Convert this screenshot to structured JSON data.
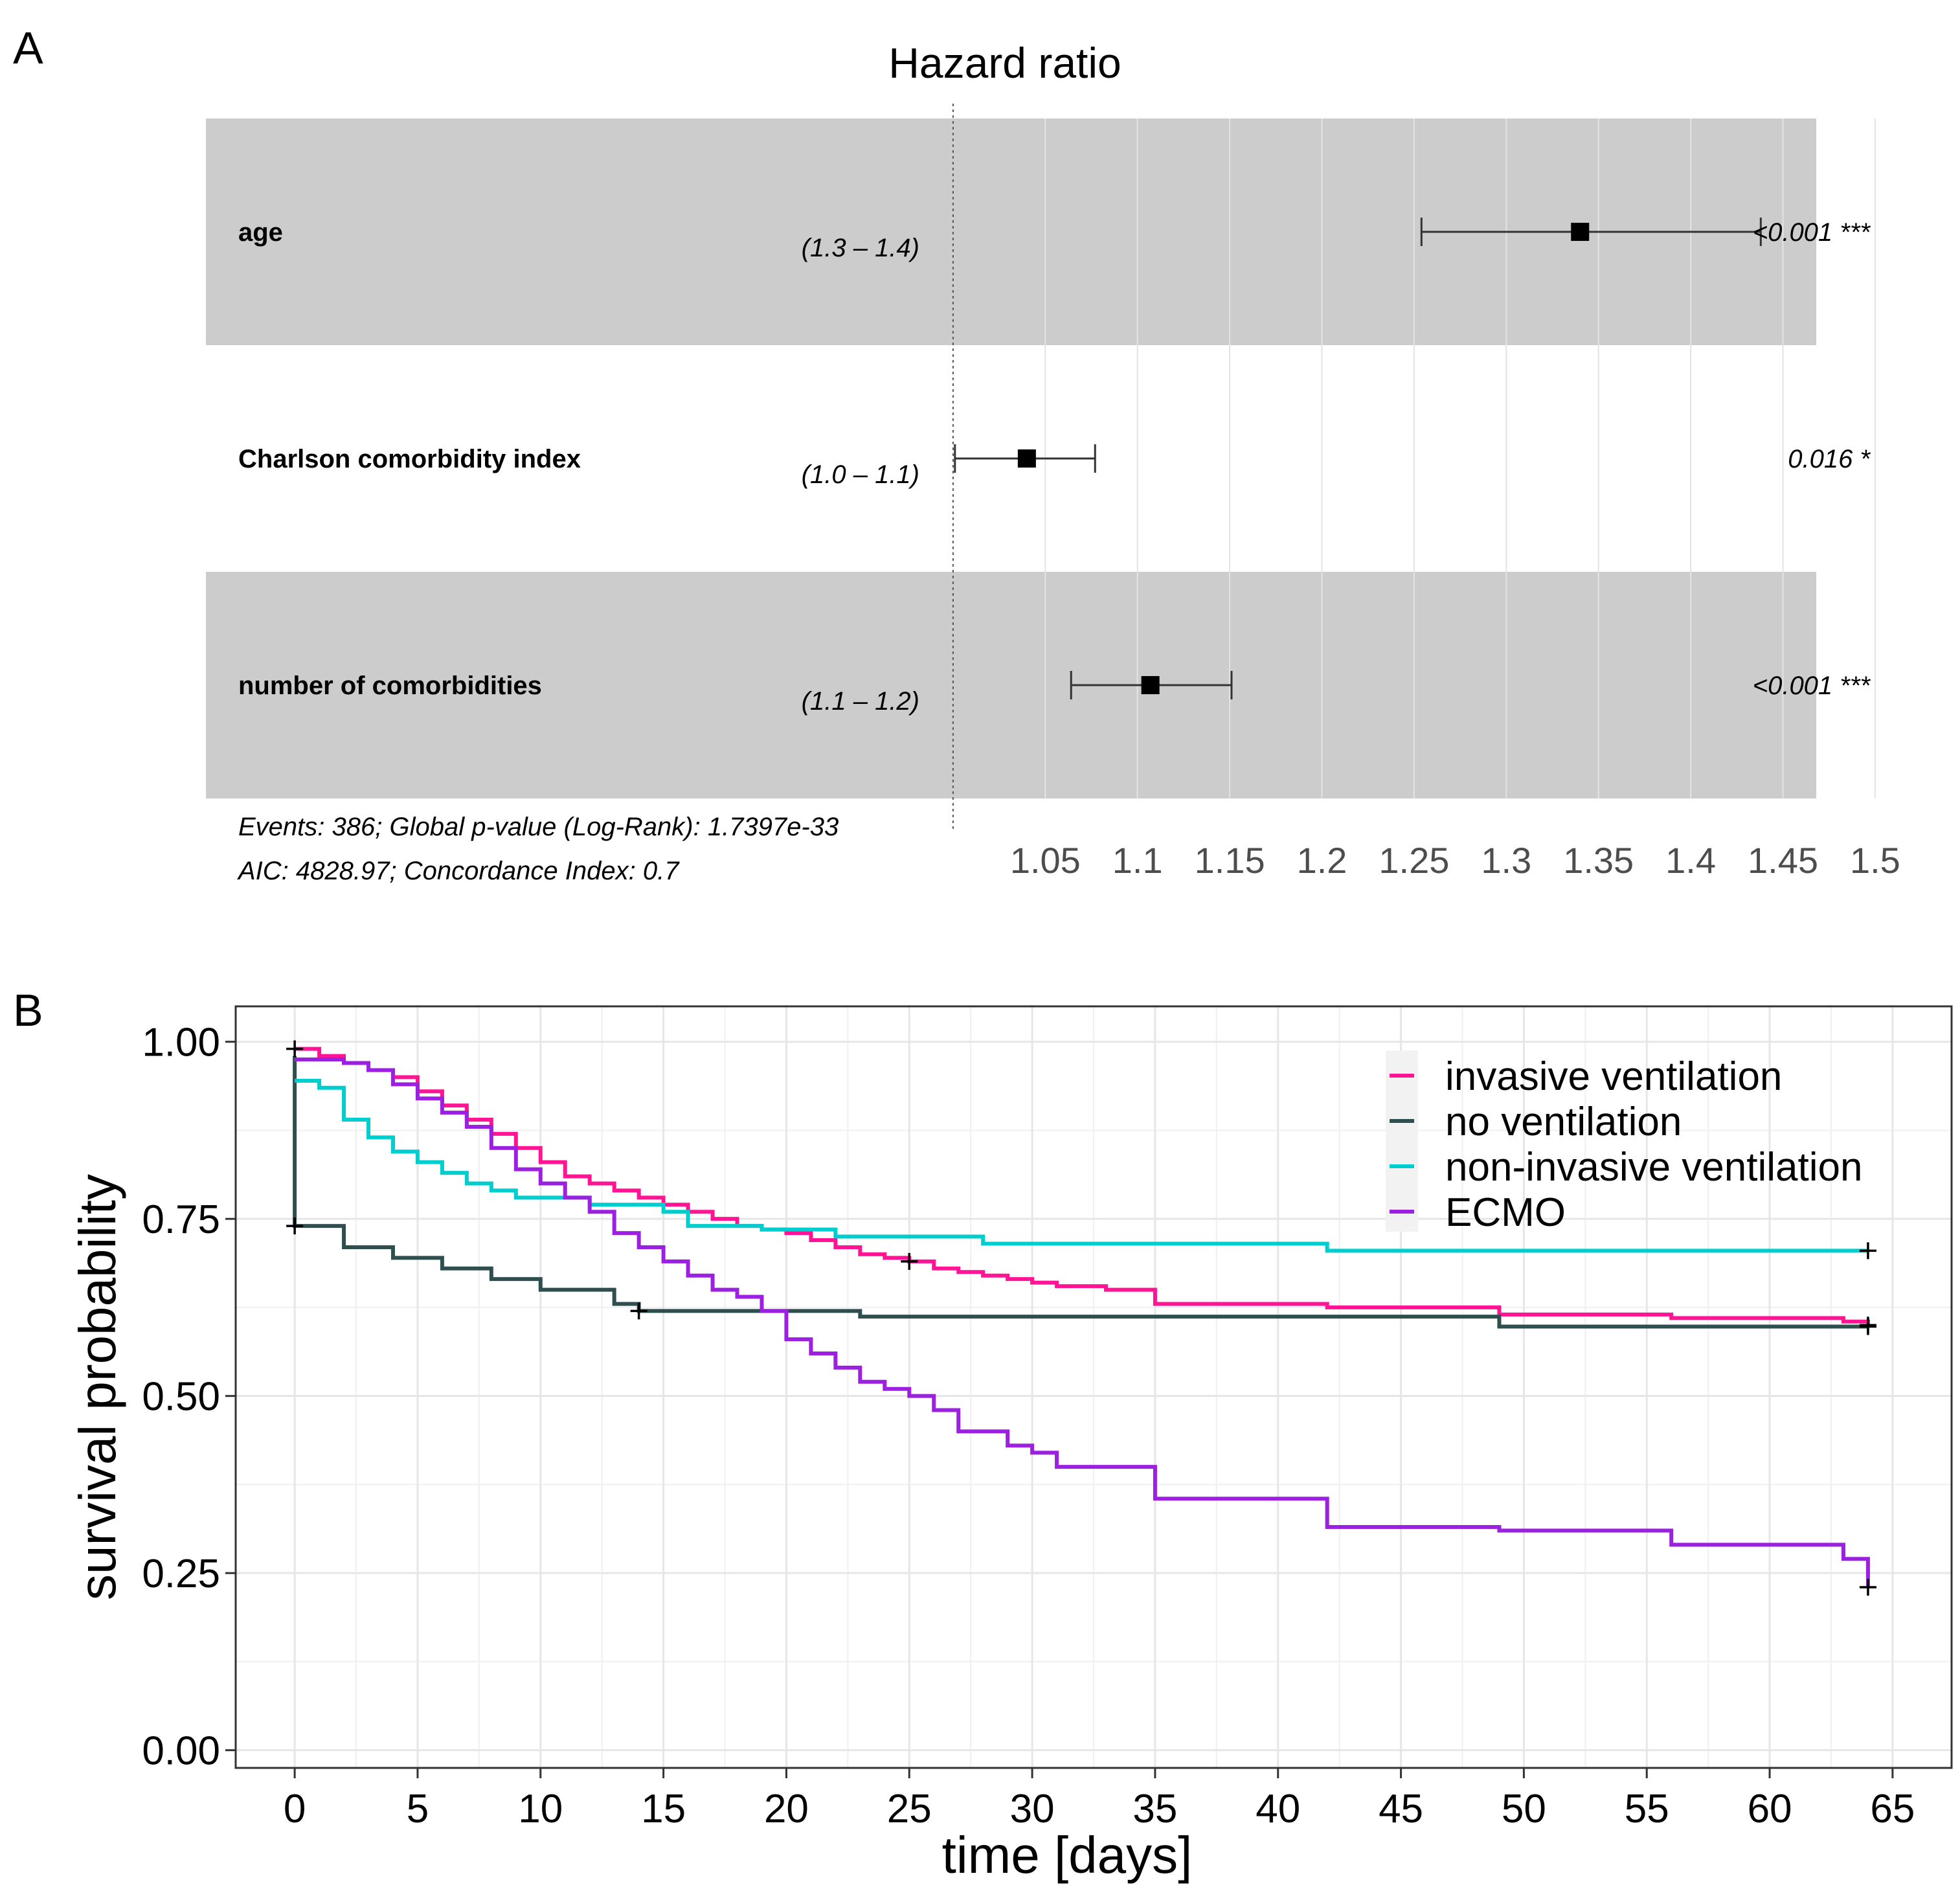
{
  "panels": {
    "a_label": "A",
    "b_label": "B"
  },
  "colors": {
    "band": "#cccccc",
    "grid_light": "#e6e6e6",
    "invasive": "#ff1493",
    "none": "#2f4f4f",
    "noninvasive": "#00cdcd",
    "ecmo": "#9b20e0"
  },
  "chart_data": [
    {
      "type": "forest",
      "title": "Hazard ratio",
      "variables": [
        {
          "label": "age",
          "ci_label": "(1.3 – 1.4)",
          "hr": 1.34,
          "lo": 1.254,
          "hi": 1.438,
          "p_label": "<0.001 ***",
          "shaded": true
        },
        {
          "label": "Charlson comorbidity index",
          "ci_label": "(1.0 – 1.1)",
          "hr": 1.04,
          "lo": 1.001,
          "hi": 1.077,
          "p_label": "0.016 *",
          "shaded": false
        },
        {
          "label": "number of comorbidities",
          "ci_label": "(1.1 – 1.2)",
          "hr": 1.107,
          "lo": 1.064,
          "hi": 1.151,
          "p_label": "<0.001 ***",
          "shaded": true
        }
      ],
      "xlim": [
        0.993,
        1.519
      ],
      "reference": 1.0,
      "ticks": [
        1.05,
        1.1,
        1.15,
        1.2,
        1.25,
        1.3,
        1.35,
        1.4,
        1.45,
        1.5
      ],
      "tick_labels": [
        "1.05",
        "1.1",
        "1.15",
        "1.2",
        "1.25",
        "1.3",
        "1.35",
        "1.4",
        "1.45",
        "1.5"
      ],
      "footnote_1": "Events: 386; Global p-value (Log-Rank): 1.7397e-33",
      "footnote_2": "AIC: 4828.97; Concordance Index: 0.7"
    },
    {
      "type": "line",
      "step": true,
      "xlabel": "time [days]",
      "ylabel": "survival probability",
      "xlim": [
        -2.4,
        67.4
      ],
      "ylim": [
        -0.025,
        1.05
      ],
      "x_ticks": [
        0,
        5,
        10,
        15,
        20,
        25,
        30,
        35,
        40,
        45,
        50,
        55,
        60,
        65
      ],
      "x_tick_labels": [
        "0",
        "5",
        "10",
        "15",
        "20",
        "25",
        "30",
        "35",
        "40",
        "45",
        "50",
        "55",
        "60",
        "65"
      ],
      "y_ticks": [
        0,
        0.25,
        0.5,
        0.75,
        1.0
      ],
      "y_tick_labels": [
        "0.00",
        "0.25",
        "0.50",
        "0.75",
        "1.00"
      ],
      "legend_position": "top-right",
      "series": [
        {
          "name": "invasive ventilation",
          "color_key": "invasive",
          "x": [
            0,
            1,
            2,
            3,
            4,
            5,
            6,
            7,
            8,
            9,
            10,
            11,
            12,
            13,
            14,
            15,
            16,
            17,
            18,
            19,
            20,
            21,
            22,
            23,
            24,
            25,
            26,
            27,
            28,
            29,
            30,
            31,
            33,
            35,
            42,
            49,
            56,
            63,
            64
          ],
          "y": [
            0.99,
            0.98,
            0.97,
            0.96,
            0.95,
            0.93,
            0.91,
            0.89,
            0.87,
            0.85,
            0.83,
            0.81,
            0.8,
            0.79,
            0.78,
            0.77,
            0.76,
            0.75,
            0.74,
            0.735,
            0.73,
            0.72,
            0.71,
            0.7,
            0.695,
            0.69,
            0.68,
            0.675,
            0.67,
            0.665,
            0.66,
            0.655,
            0.65,
            0.63,
            0.625,
            0.615,
            0.61,
            0.605,
            0.6
          ],
          "censor": [
            [
              0,
              0.99
            ],
            [
              25,
              0.69
            ],
            [
              64,
              0.6
            ]
          ]
        },
        {
          "name": "no ventilation",
          "color_key": "none",
          "x": [
            0,
            0,
            2,
            4,
            6,
            8,
            10,
            13,
            14,
            23,
            49,
            64
          ],
          "y": [
            0.98,
            0.74,
            0.71,
            0.695,
            0.68,
            0.665,
            0.65,
            0.63,
            0.62,
            0.612,
            0.598,
            0.598
          ],
          "censor": [
            [
              0,
              0.74
            ],
            [
              14,
              0.62
            ],
            [
              64,
              0.598
            ]
          ]
        },
        {
          "name": "non-invasive ventilation",
          "color_key": "noninvasive",
          "x": [
            0,
            1,
            2,
            3,
            4,
            5,
            6,
            7,
            8,
            9,
            12,
            15,
            16,
            19,
            22,
            28,
            42,
            64
          ],
          "y": [
            0.945,
            0.935,
            0.89,
            0.865,
            0.845,
            0.83,
            0.815,
            0.8,
            0.79,
            0.78,
            0.77,
            0.76,
            0.74,
            0.735,
            0.725,
            0.715,
            0.705,
            0.705
          ],
          "censor": [
            [
              64,
              0.705
            ]
          ]
        },
        {
          "name": "ECMO",
          "color_key": "ecmo",
          "x": [
            0,
            2,
            3,
            4,
            5,
            6,
            7,
            8,
            9,
            10,
            11,
            12,
            13,
            14,
            15,
            16,
            17,
            18,
            19,
            20,
            21,
            22,
            23,
            24,
            25,
            26,
            27,
            29,
            30,
            31,
            35,
            42,
            49,
            56,
            63,
            64
          ],
          "y": [
            0.975,
            0.97,
            0.96,
            0.94,
            0.92,
            0.9,
            0.88,
            0.85,
            0.82,
            0.8,
            0.78,
            0.76,
            0.73,
            0.71,
            0.69,
            0.67,
            0.65,
            0.64,
            0.62,
            0.58,
            0.56,
            0.54,
            0.52,
            0.51,
            0.5,
            0.48,
            0.45,
            0.43,
            0.42,
            0.4,
            0.355,
            0.315,
            0.31,
            0.29,
            0.27,
            0.23
          ],
          "censor": [
            [
              64,
              0.23
            ]
          ]
        }
      ]
    }
  ]
}
